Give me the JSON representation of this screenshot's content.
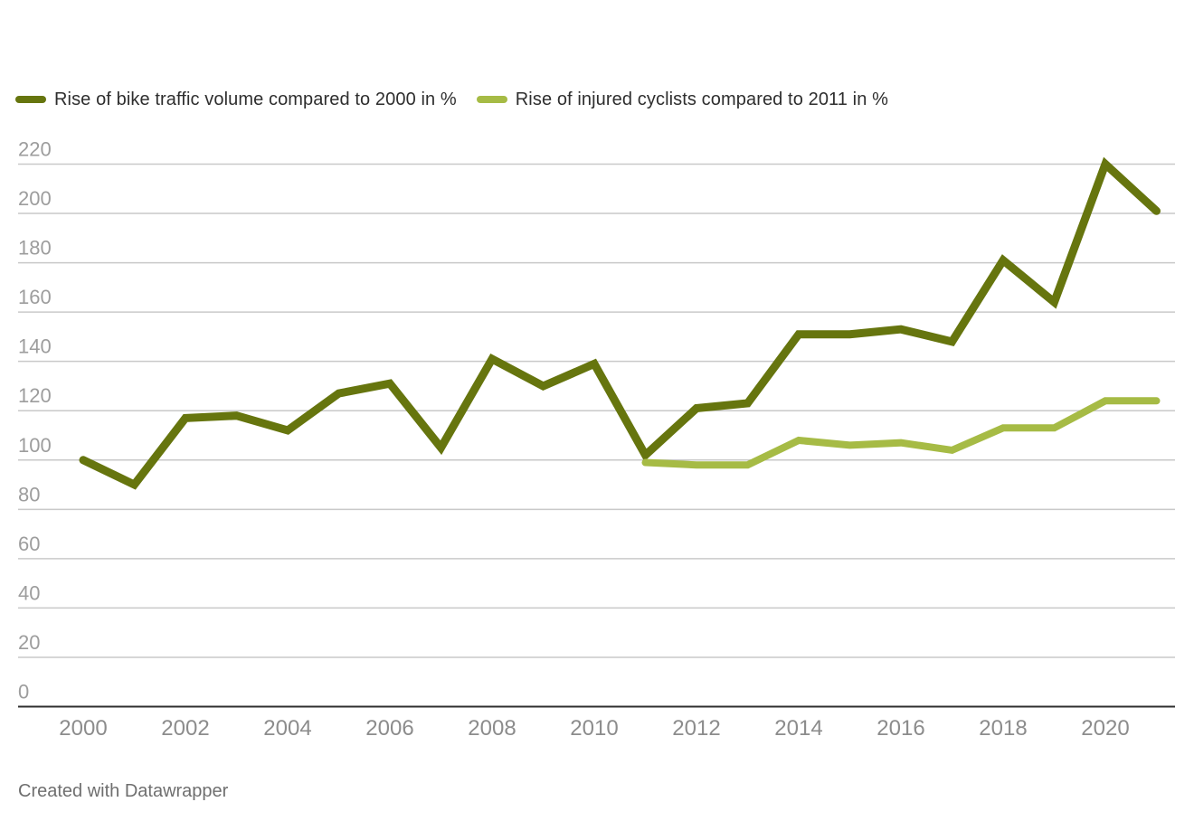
{
  "legend": {
    "items": [
      {
        "label": "Rise of bike traffic volume compared to 2000 in %",
        "color": "#66750e"
      },
      {
        "label": "Rise of injured cyclists compared to 2011 in %",
        "color": "#a6bb45"
      }
    ]
  },
  "footer": {
    "credit": "Created with Datawrapper"
  },
  "style": {
    "background": "#ffffff",
    "grid_color": "#c9c9c9",
    "baseline_color": "#2f2f2f",
    "ytick_label_color": "#9d9d9d",
    "xtick_label_color": "#8c8c8c",
    "legend_text_color": "#2e2e2e",
    "footer_text_color": "#6f6f6f"
  },
  "chart_data": {
    "type": "line",
    "title": "",
    "xlabel": "",
    "ylabel": "",
    "x": [
      2000,
      2001,
      2002,
      2003,
      2004,
      2005,
      2006,
      2007,
      2008,
      2009,
      2010,
      2011,
      2012,
      2013,
      2014,
      2015,
      2016,
      2017,
      2018,
      2019,
      2020,
      2021
    ],
    "series": [
      {
        "name": "Rise of bike traffic volume compared to 2000 in %",
        "color": "#66750e",
        "stroke_width": 9,
        "values": [
          100,
          90,
          117,
          118,
          112,
          127,
          131,
          105,
          141,
          130,
          139,
          102,
          121,
          123,
          151,
          151,
          153,
          148,
          181,
          164,
          220,
          201
        ]
      },
      {
        "name": "Rise of injured cyclists compared to 2011 in %",
        "color": "#a6bb45",
        "stroke_width": 8,
        "values": [
          null,
          null,
          null,
          null,
          null,
          null,
          null,
          null,
          null,
          null,
          null,
          99,
          98,
          98,
          108,
          106,
          107,
          104,
          113,
          113,
          124,
          124
        ]
      }
    ],
    "ylim": [
      0,
      220
    ],
    "yticks": [
      0,
      20,
      40,
      60,
      80,
      100,
      120,
      140,
      160,
      180,
      200,
      220
    ],
    "xticks": [
      2000,
      2002,
      2004,
      2006,
      2008,
      2010,
      2012,
      2014,
      2016,
      2018,
      2020
    ],
    "grid": "horizontal",
    "legend_position": "top"
  }
}
